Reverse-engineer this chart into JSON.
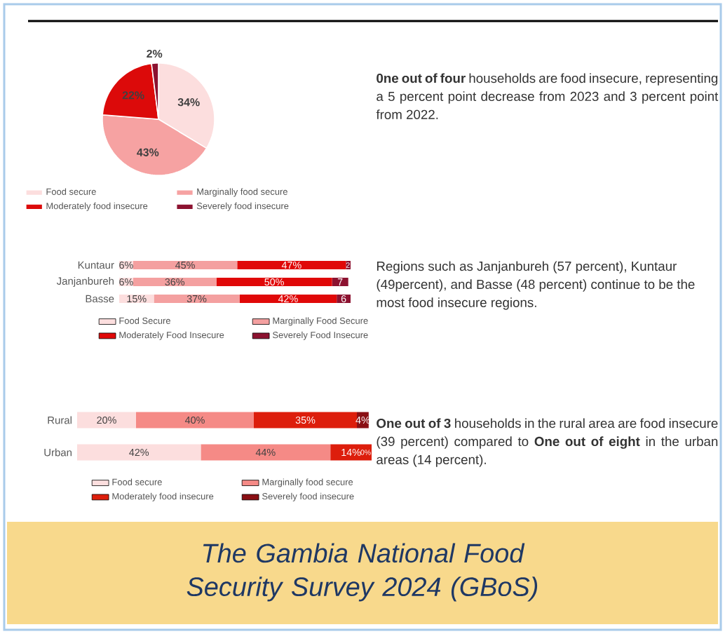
{
  "chart_data": [
    {
      "type": "pie",
      "categories": [
        "Food secure",
        "Marginally food secure",
        "Moderately food insecure",
        "Severely food insecure"
      ],
      "values": [
        34,
        43,
        22,
        2
      ],
      "colors": [
        "#fcdede",
        "#f6a2a2",
        "#dc0a0a",
        "#8c1230"
      ],
      "value_labels": [
        "34%",
        "43%",
        "22%",
        "2%"
      ],
      "legend": "bottom",
      "annotations": [
        "**0ne out of four** households are food insecure, representing a 5 percent point decrease from 2023 and 3 percent point from 2022."
      ]
    },
    {
      "type": "bar",
      "orientation": "horizontal",
      "stacked": true,
      "categories": [
        "Kuntaur",
        "Janjanbureh",
        "Basse"
      ],
      "xlim": [
        0,
        100
      ],
      "tick_labels": "y",
      "legend": "bottom",
      "series": [
        {
          "name": "Food Secure",
          "color": "#fcdede",
          "values": [
            6,
            6,
            15
          ],
          "value_labels": [
            "6%",
            "6%",
            "15%"
          ]
        },
        {
          "name": "Marginally Food Secure",
          "color": "#f4a0a0",
          "values": [
            45,
            36,
            37
          ],
          "value_labels": [
            "45%",
            "36%",
            "37%"
          ]
        },
        {
          "name": "Moderately Food Insecure",
          "color": "#e00808",
          "values": [
            47,
            50,
            42
          ],
          "value_labels": [
            "47%",
            "50%",
            "42%"
          ]
        },
        {
          "name": "Severely Food Insecure",
          "color": "#8c1230",
          "values": [
            2,
            7,
            6
          ],
          "value_labels": [
            "2",
            "7",
            "6"
          ]
        }
      ],
      "annotations": [
        "Regions such as Janjanbureh (57 percent), Kuntaur (49percent), and Basse (48 percent) continue to be the most food insecure regions."
      ]
    },
    {
      "type": "bar",
      "orientation": "horizontal",
      "stacked": true,
      "categories": [
        "Rural",
        "Urban"
      ],
      "xlim": [
        0,
        100
      ],
      "tick_labels": "y",
      "legend": "bottom",
      "series": [
        {
          "name": "Food secure",
          "color": "#fcdede",
          "values": [
            20,
            42
          ],
          "value_labels": [
            "20%",
            "42%"
          ]
        },
        {
          "name": "Marginally food secure",
          "color": "#f58a86",
          "values": [
            40,
            44
          ],
          "value_labels": [
            "40%",
            "44%"
          ]
        },
        {
          "name": "Moderately food insecure",
          "color": "#dd1e0c",
          "values": [
            35,
            14
          ],
          "value_labels": [
            "35%",
            "14%"
          ]
        },
        {
          "name": "Severely food insecure",
          "color": "#8a0f14",
          "values": [
            4,
            0
          ],
          "value_labels": [
            "4%",
            "0%"
          ]
        }
      ],
      "annotations": [
        "**One out of 3** households in the rural area are food insecure (39 percent) compared to **One out of eight** in the urban areas (14 percent)."
      ]
    },
    {
      "type": "other",
      "title": "The Gambia National Food Security Survey 2024 (GBoS)"
    }
  ]
}
